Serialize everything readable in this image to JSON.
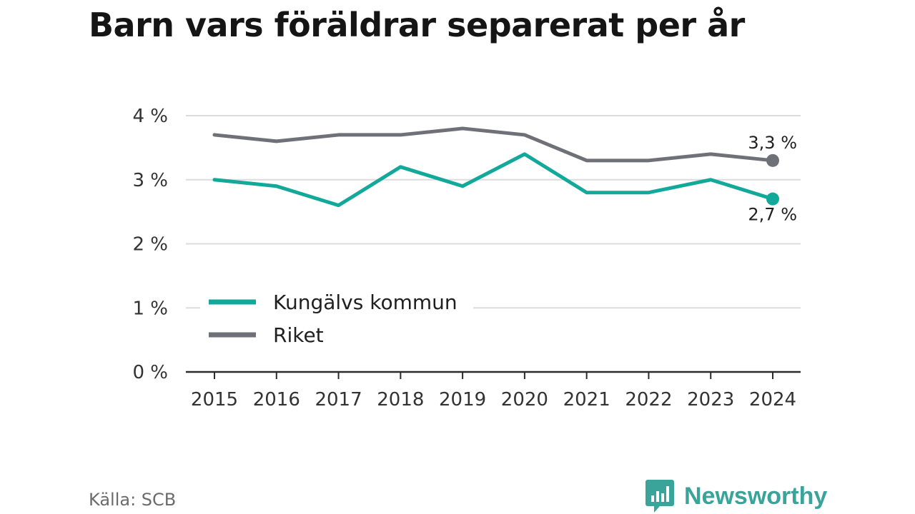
{
  "title": "Barn vars föräldrar separerat per år",
  "source": "Källa: SCB",
  "brand": "Newsworthy",
  "colors": {
    "kungalv": "#12a89a",
    "riket": "#707078",
    "grid": "#dcdcdc",
    "axis": "#2b2b2b",
    "text": "#333333",
    "brand": "#3aa39a"
  },
  "chart_data": {
    "type": "line",
    "x": [
      "2015",
      "2016",
      "2017",
      "2018",
      "2019",
      "2020",
      "2021",
      "2022",
      "2023",
      "2024"
    ],
    "series": [
      {
        "name": "Kungälvs kommun",
        "values": [
          3.0,
          2.9,
          2.6,
          3.2,
          2.9,
          3.4,
          2.8,
          2.8,
          3.0,
          2.7
        ],
        "end_label": "2,7 %"
      },
      {
        "name": "Riket",
        "values": [
          3.7,
          3.6,
          3.7,
          3.7,
          3.8,
          3.7,
          3.3,
          3.3,
          3.4,
          3.3
        ],
        "end_label": "3,3 %"
      }
    ],
    "ylim": [
      0,
      4
    ],
    "yticks": [
      0,
      1,
      2,
      3,
      4
    ],
    "ytick_labels": [
      "0 %",
      "1 %",
      "2 %",
      "3 %",
      "4 %"
    ],
    "grid": true,
    "legend": "bottom-left"
  }
}
